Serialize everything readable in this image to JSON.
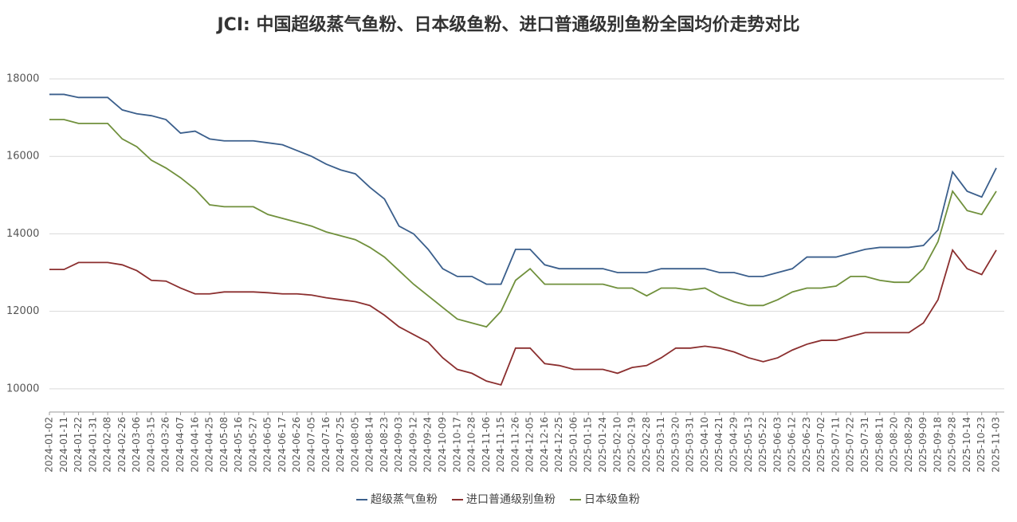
{
  "chart_data": {
    "type": "line",
    "title": "JCI: 中国超级蒸气鱼粉、日本级鱼粉、进口普通级别鱼粉全国均价走势对比",
    "categories": [
      "2024-01-02",
      "2024-01-11",
      "2024-01-22",
      "2024-01-31",
      "2024-02-08",
      "2024-02-26",
      "2024-03-06",
      "2024-03-15",
      "2024-03-26",
      "2024-04-07",
      "2024-04-16",
      "2024-04-25",
      "2024-05-08",
      "2024-05-16",
      "2024-05-27",
      "2024-06-05",
      "2024-06-17",
      "2024-06-26",
      "2024-07-05",
      "2024-07-16",
      "2024-07-25",
      "2024-08-05",
      "2024-08-14",
      "2024-08-23",
      "2024-09-03",
      "2024-09-12",
      "2024-09-24",
      "2024-10-09",
      "2024-10-17",
      "2024-10-28",
      "2024-11-06",
      "2024-11-15",
      "2024-11-26",
      "2024-12-05",
      "2024-12-16",
      "2024-12-25",
      "2025-01-06",
      "2025-01-15",
      "2025-01-24",
      "2025-02-10",
      "2025-02-19",
      "2025-02-28",
      "2025-03-11",
      "2025-03-20",
      "2025-03-31",
      "2025-04-10",
      "2025-04-21",
      "2025-04-29",
      "2025-05-13",
      "2025-05-22",
      "2025-06-03",
      "2025-06-12",
      "2025-06-23",
      "2025-07-02",
      "2025-07-11",
      "2025-07-22",
      "2025-07-31",
      "2025-08-11",
      "2025-08-20",
      "2025-08-29",
      "2025-09-09",
      "2025-09-18",
      "2025-09-28",
      "2025-10-14",
      "2025-10-23",
      "2025-11-03"
    ],
    "series": [
      {
        "name": "超级蒸气鱼粉",
        "color": "#3b5f8c",
        "values": [
          17600,
          17600,
          17520,
          17520,
          17520,
          17200,
          17100,
          17050,
          16950,
          16600,
          16650,
          16450,
          16400,
          16400,
          16400,
          16350,
          16300,
          16150,
          16000,
          15800,
          15650,
          15550,
          15200,
          14900,
          14200,
          14000,
          13600,
          13100,
          12900,
          12900,
          12700,
          12700,
          13600,
          13600,
          13200,
          13100,
          13100,
          13100,
          13100,
          13000,
          13000,
          13000,
          13100,
          13100,
          13100,
          13100,
          13000,
          13000,
          12900,
          12900,
          13000,
          13100,
          13400,
          13400,
          13400,
          13500,
          13600,
          13650,
          13650,
          13650,
          13700,
          14100,
          15600,
          15100,
          14950,
          15700
        ]
      },
      {
        "name": "进口普通级别鱼粉",
        "color": "#8b2f2f",
        "values": [
          13080,
          13080,
          13260,
          13260,
          13260,
          13200,
          13050,
          12800,
          12780,
          12600,
          12450,
          12450,
          12500,
          12500,
          12500,
          12480,
          12450,
          12450,
          12420,
          12350,
          12300,
          12250,
          12150,
          11900,
          11600,
          11400,
          11200,
          10800,
          10500,
          10400,
          10200,
          10100,
          11050,
          11050,
          10650,
          10600,
          10500,
          10500,
          10500,
          10400,
          10550,
          10600,
          10800,
          11050,
          11050,
          11100,
          11050,
          10950,
          10800,
          10700,
          10800,
          11000,
          11150,
          11250,
          11250,
          11350,
          11450,
          11450,
          11450,
          11450,
          11700,
          12300,
          13580,
          13100,
          12950,
          13580
        ]
      },
      {
        "name": "日本级鱼粉",
        "color": "#70903c",
        "values": [
          16950,
          16950,
          16850,
          16850,
          16850,
          16450,
          16250,
          15900,
          15700,
          15450,
          15150,
          14750,
          14700,
          14700,
          14700,
          14500,
          14400,
          14300,
          14200,
          14050,
          13950,
          13850,
          13650,
          13400,
          13050,
          12700,
          12400,
          12100,
          11800,
          11700,
          11600,
          12000,
          12800,
          13100,
          12700,
          12700,
          12700,
          12700,
          12700,
          12600,
          12600,
          12400,
          12600,
          12600,
          12550,
          12600,
          12400,
          12250,
          12150,
          12150,
          12300,
          12500,
          12600,
          12600,
          12650,
          12900,
          12900,
          12800,
          12750,
          12750,
          13100,
          13800,
          15100,
          14600,
          14500,
          15100
        ]
      }
    ],
    "ylim": [
      9400,
      18000
    ],
    "yticks": [
      10000,
      12000,
      14000,
      16000,
      18000
    ],
    "grid": true,
    "legend": "bottom"
  }
}
